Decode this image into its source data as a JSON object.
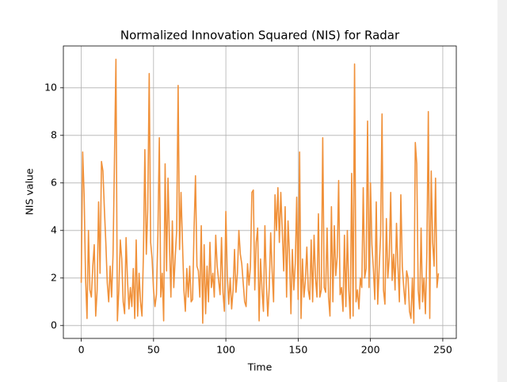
{
  "chart_data": {
    "type": "line",
    "title": "Normalized Innovation Squared (NIS) for Radar",
    "x_label": "Time",
    "y_label": "NIS value",
    "color": "#f0913a",
    "grid": true,
    "xlim": [
      -12.35,
      259.35
    ],
    "ylim": [
      -0.54,
      11.76
    ],
    "xticks": [
      0,
      50,
      100,
      150,
      200,
      250
    ],
    "yticks": [
      0,
      2,
      4,
      6,
      8,
      10
    ],
    "x": [
      0,
      1,
      2,
      3,
      4,
      5,
      6,
      7,
      8,
      9,
      10,
      11,
      12,
      13,
      14,
      15,
      16,
      17,
      18,
      19,
      20,
      21,
      22,
      23,
      24,
      25,
      26,
      27,
      28,
      29,
      30,
      31,
      32,
      33,
      34,
      35,
      36,
      37,
      38,
      39,
      40,
      41,
      42,
      43,
      44,
      45,
      46,
      47,
      48,
      49,
      50,
      51,
      52,
      53,
      54,
      55,
      56,
      57,
      58,
      59,
      60,
      61,
      62,
      63,
      64,
      65,
      66,
      67,
      68,
      69,
      70,
      71,
      72,
      73,
      74,
      75,
      76,
      77,
      78,
      79,
      80,
      81,
      82,
      83,
      84,
      85,
      86,
      87,
      88,
      89,
      90,
      91,
      92,
      93,
      94,
      95,
      96,
      97,
      98,
      99,
      100,
      101,
      102,
      103,
      104,
      105,
      106,
      107,
      108,
      109,
      110,
      111,
      112,
      113,
      114,
      115,
      116,
      117,
      118,
      119,
      120,
      121,
      122,
      123,
      124,
      125,
      126,
      127,
      128,
      129,
      130,
      131,
      132,
      133,
      134,
      135,
      136,
      137,
      138,
      139,
      140,
      141,
      142,
      143,
      144,
      145,
      146,
      147,
      148,
      149,
      150,
      151,
      152,
      153,
      154,
      155,
      156,
      157,
      158,
      159,
      160,
      161,
      162,
      163,
      164,
      165,
      166,
      167,
      168,
      169,
      170,
      171,
      172,
      173,
      174,
      175,
      176,
      177,
      178,
      179,
      180,
      181,
      182,
      183,
      184,
      185,
      186,
      187,
      188,
      189,
      190,
      191,
      192,
      193,
      194,
      195,
      196,
      197,
      198,
      199,
      200,
      201,
      202,
      203,
      204,
      205,
      206,
      207,
      208,
      209,
      210,
      211,
      212,
      213,
      214,
      215,
      216,
      217,
      218,
      219,
      220,
      221,
      222,
      223,
      224,
      225,
      226,
      227,
      228,
      229,
      230,
      231,
      232,
      233,
      234,
      235,
      236,
      237,
      238,
      239,
      240,
      241,
      242,
      243,
      244,
      245,
      246,
      247
    ],
    "values": [
      1.8,
      7.3,
      5.5,
      2.0,
      0.3,
      4.0,
      1.5,
      1.2,
      2.5,
      3.4,
      0.4,
      1.5,
      5.2,
      2.2,
      6.9,
      6.5,
      4.9,
      3.5,
      1.8,
      1.0,
      2.5,
      1.2,
      3.0,
      7.0,
      11.2,
      0.2,
      1.5,
      3.6,
      2.8,
      1.0,
      0.5,
      3.7,
      1.9,
      0.7,
      1.6,
      0.8,
      2.4,
      0.3,
      3.6,
      0.4,
      2.2,
      1.0,
      0.4,
      3.0,
      7.4,
      3.0,
      4.9,
      10.6,
      3.5,
      2.8,
      1.5,
      0.8,
      1.3,
      3.8,
      7.9,
      1.2,
      2.2,
      0.2,
      6.8,
      2.3,
      6.2,
      3.5,
      1.2,
      4.4,
      1.6,
      2.9,
      4.0,
      10.1,
      3.2,
      5.6,
      3.5,
      1.5,
      0.6,
      2.4,
      1.2,
      2.5,
      1.0,
      1.1,
      4.0,
      6.3,
      2.5,
      2.3,
      1.2,
      4.2,
      0.1,
      3.4,
      0.5,
      2.5,
      1.0,
      3.5,
      1.6,
      2.2,
      1.2,
      3.8,
      2.5,
      1.9,
      1.3,
      3.7,
      1.4,
      0.6,
      4.8,
      2.1,
      0.9,
      2.0,
      0.7,
      1.5,
      3.2,
      1.4,
      2.2,
      4.0,
      3.0,
      2.6,
      1.8,
      1.0,
      0.8,
      2.6,
      1.7,
      2.5,
      5.6,
      5.7,
      1.5,
      3.5,
      4.1,
      0.2,
      2.8,
      1.5,
      0.6,
      4.2,
      1.8,
      0.4,
      1.6,
      3.9,
      2.3,
      1.0,
      5.5,
      4.0,
      5.8,
      3.5,
      5.6,
      4.0,
      2.3,
      5.0,
      1.2,
      4.4,
      3.0,
      0.5,
      3.2,
      1.5,
      2.6,
      5.4,
      1.1,
      7.3,
      0.3,
      2.8,
      1.2,
      1.9,
      3.3,
      1.5,
      1.1,
      3.6,
      1.0,
      3.8,
      2.0,
      1.2,
      4.7,
      1.2,
      1.5,
      7.9,
      1.6,
      1.4,
      4.1,
      1.2,
      0.4,
      5.0,
      1.0,
      4.2,
      2.1,
      2.9,
      6.1,
      1.3,
      1.6,
      0.6,
      3.8,
      0.8,
      4.0,
      1.5,
      0.3,
      6.4,
      0.4,
      11.0,
      1.0,
      1.5,
      0.7,
      2.0,
      1.6,
      5.8,
      2.0,
      2.4,
      8.6,
      1.6,
      6.0,
      3.4,
      2.4,
      1.1,
      5.2,
      0.9,
      2.4,
      3.8,
      8.9,
      1.5,
      0.9,
      4.5,
      2.0,
      2.9,
      5.6,
      1.9,
      3.0,
      1.5,
      4.3,
      2.5,
      1.0,
      5.5,
      2.5,
      1.6,
      0.9,
      2.3,
      2.0,
      0.6,
      0.3,
      2.0,
      0.1,
      7.7,
      6.8,
      1.5,
      0.7,
      4.1,
      1.0,
      2.0,
      0.5,
      3.1,
      9.0,
      0.3,
      6.5,
      3.5,
      2.5,
      6.2,
      1.6,
      2.2
    ]
  }
}
